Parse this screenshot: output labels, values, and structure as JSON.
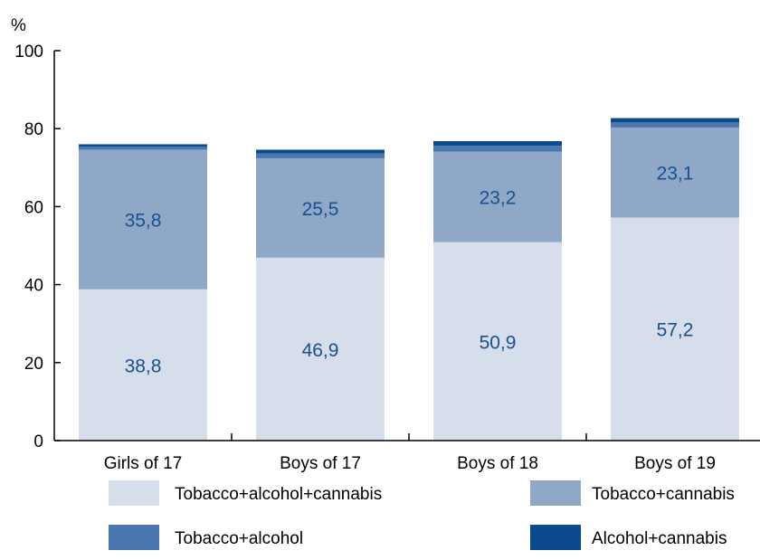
{
  "chart_data": {
    "type": "bar",
    "stacked": true,
    "unit_label": "%",
    "ylim": [
      0,
      100
    ],
    "y_ticks": [
      "0",
      "20",
      "40",
      "60",
      "80",
      "100"
    ],
    "categories": [
      "Girls of 17",
      "Boys of 17",
      "Boys of 18",
      "Boys of 19"
    ],
    "series": [
      {
        "name": "Tobacco+alcohol+cannabis",
        "values": [
          38.8,
          46.9,
          50.9,
          57.2
        ],
        "labels": [
          "38,8",
          "46,9",
          "50,9",
          "57,2"
        ],
        "color": "#d5deea"
      },
      {
        "name": "Tobacco+cannabis",
        "values": [
          35.8,
          25.5,
          23.2,
          23.1
        ],
        "labels": [
          "35,8",
          "25,5",
          "23,2",
          "23,1"
        ],
        "color": "#8fa8c8"
      },
      {
        "name": "Tobacco+alcohol",
        "values": [
          0.8,
          1.2,
          1.5,
          1.3
        ],
        "labels": [
          "",
          "",
          "",
          ""
        ],
        "color": "#4a77ae"
      },
      {
        "name": "Alcohol+cannabis",
        "values": [
          0.6,
          1.0,
          1.2,
          1.1
        ],
        "labels": [
          "",
          "",
          "",
          ""
        ],
        "color": "#0b4a8c"
      }
    ],
    "label_color": "#1b4f8f",
    "grid": false,
    "legend_position": "bottom"
  }
}
